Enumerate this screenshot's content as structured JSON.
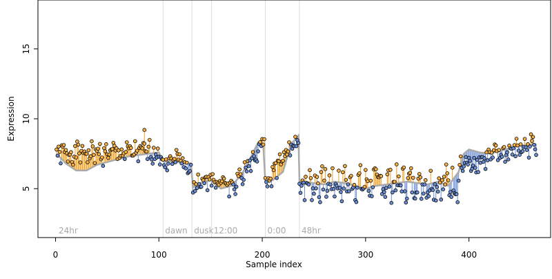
{
  "chart_data": {
    "type": "scatter",
    "xlabel": "Sample index",
    "ylabel": "Expression",
    "xlim": [
      -17,
      479
    ],
    "ylim": [
      1.5,
      18.5
    ],
    "x_ticks": [
      0,
      100,
      200,
      300,
      400
    ],
    "y_ticks": [
      5,
      10,
      15
    ],
    "grid": false,
    "colors": {
      "point_fill_high": "#f5b041",
      "point_fill_low": "#6b8fd6",
      "residual_high": "#f0a020",
      "residual_low": "#6b8fd6",
      "fit_line": "#aaaaaa",
      "phase_line": "#dddddd",
      "annotation_text": "#aaaaaa"
    },
    "phase_markers": [
      {
        "x": 104,
        "label": "dawn"
      },
      {
        "x": 132,
        "label": "dusk"
      },
      {
        "x": 151,
        "label": "12:00"
      },
      {
        "x": 203,
        "label": "0:00"
      },
      {
        "x": 236,
        "label": "48hr"
      }
    ],
    "start_label": {
      "x": 3,
      "label": "24hr"
    },
    "fit_anchors": [
      [
        1,
        7.5
      ],
      [
        10,
        6.8
      ],
      [
        20,
        6.3
      ],
      [
        30,
        6.3
      ],
      [
        40,
        6.7
      ],
      [
        50,
        6.9
      ],
      [
        60,
        7.1
      ],
      [
        70,
        7.3
      ],
      [
        80,
        7.4
      ],
      [
        90,
        7.5
      ],
      [
        100,
        7.6
      ],
      [
        104,
        7.0
      ],
      [
        118,
        6.9
      ],
      [
        131,
        6.8
      ],
      [
        133,
        5.1
      ],
      [
        140,
        5.4
      ],
      [
        150,
        5.6
      ],
      [
        160,
        5.0
      ],
      [
        170,
        5.2
      ],
      [
        180,
        6.0
      ],
      [
        190,
        7.4
      ],
      [
        196,
        8.3
      ],
      [
        201,
        8.1
      ],
      [
        203,
        5.5
      ],
      [
        210,
        5.6
      ],
      [
        220,
        6.2
      ],
      [
        228,
        8.2
      ],
      [
        235,
        8.8
      ],
      [
        236,
        5.5
      ],
      [
        250,
        5.4
      ],
      [
        260,
        5.3
      ],
      [
        270,
        5.5
      ],
      [
        280,
        5.4
      ],
      [
        290,
        5.2
      ],
      [
        300,
        5.0
      ],
      [
        310,
        5.2
      ],
      [
        320,
        5.3
      ],
      [
        330,
        5.4
      ],
      [
        340,
        5.5
      ],
      [
        350,
        5.4
      ],
      [
        360,
        5.3
      ],
      [
        370,
        5.5
      ],
      [
        380,
        5.2
      ],
      [
        390,
        6.2
      ],
      [
        395,
        7.5
      ],
      [
        400,
        7.8
      ],
      [
        410,
        7.6
      ],
      [
        420,
        7.5
      ],
      [
        430,
        7.7
      ],
      [
        440,
        7.9
      ],
      [
        450,
        8.1
      ],
      [
        460,
        8.1
      ],
      [
        465,
        8.2
      ]
    ],
    "segments": [
      {
        "x0": 1,
        "x1": 103,
        "y0": 7.5,
        "y1": 7.6,
        "amp": 0.7,
        "seed": 1
      },
      {
        "x0": 104,
        "x1": 131,
        "y0": 7.0,
        "y1": 6.9,
        "amp": 0.7,
        "seed": 2
      },
      {
        "x0": 133,
        "x1": 150,
        "y0": 5.1,
        "y1": 5.6,
        "amp": 0.6,
        "seed": 3
      },
      {
        "x0": 151,
        "x1": 175,
        "y0": 5.6,
        "y1": 5.2,
        "amp": 0.7,
        "seed": 4
      },
      {
        "x0": 176,
        "x1": 202,
        "y0": 5.6,
        "y1": 8.2,
        "amp": 0.6,
        "seed": 5
      },
      {
        "x0": 203,
        "x1": 235,
        "y0": 5.4,
        "y1": 8.6,
        "amp": 0.7,
        "seed": 6
      },
      {
        "x0": 236,
        "x1": 390,
        "y0": 5.4,
        "y1": 5.4,
        "amp": 1.1,
        "seed": 7
      },
      {
        "x0": 391,
        "x1": 465,
        "y0": 6.6,
        "y1": 8.2,
        "amp": 0.7,
        "seed": 8
      }
    ],
    "outliers": [
      [
        86,
        9.2
      ]
    ]
  }
}
